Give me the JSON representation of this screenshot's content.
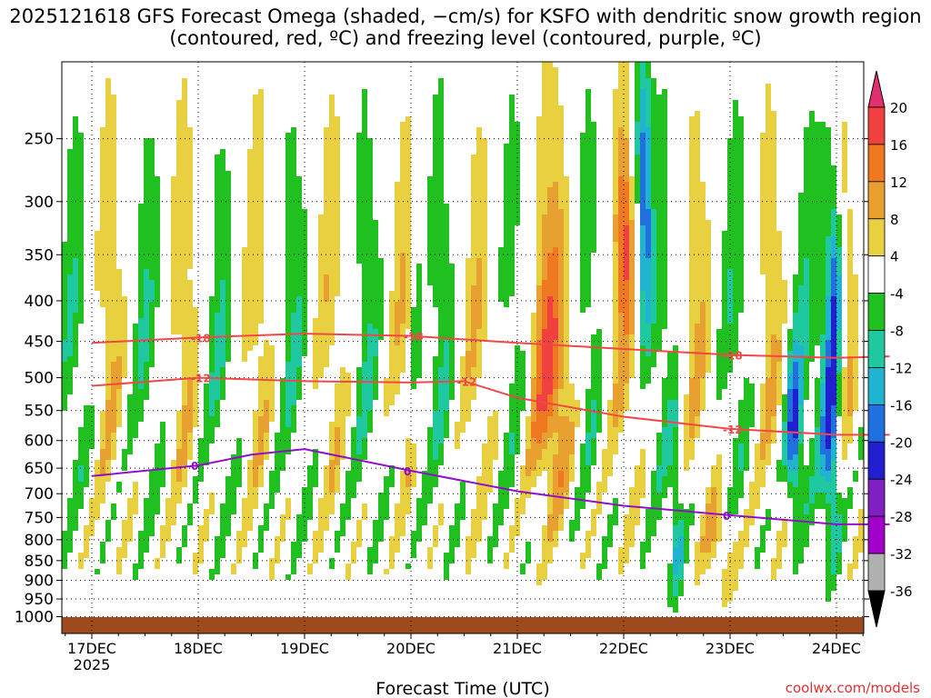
{
  "title": "2025121618 GFS Forecast Omega (shaded, −cm/s) for KSFO with dendritic snow growth region (contoured, red, ºC) and freezing level (contoured, purple, ºC)",
  "credit": "coolwx.com/models",
  "chart_data": {
    "type": "heatmap",
    "title": "2025121618 GFS Forecast Omega (shaded, −cm/s) for KSFO with dendritic snow growth region (contoured, red, ºC) and freezing level (contoured, purple, ºC)",
    "xlabel": "Forecast Time (UTC)",
    "ylabel": "",
    "x_ticks": [
      "17DEC",
      "18DEC",
      "19DEC",
      "20DEC",
      "21DEC",
      "22DEC",
      "23DEC",
      "24DEC"
    ],
    "x_sub_label": "2025",
    "y_ticks": [
      250,
      300,
      350,
      400,
      450,
      500,
      550,
      600,
      650,
      700,
      750,
      800,
      850,
      900,
      950,
      1000
    ],
    "y_reversed": true,
    "y_scale": "log",
    "grid": true,
    "colorbar": {
      "levels": [
        20,
        16,
        12,
        8,
        4,
        -4,
        -8,
        -12,
        -16,
        -20,
        -24,
        -28,
        -32,
        -36
      ],
      "colors": [
        "#e0306e",
        "#f04040",
        "#f07820",
        "#e8a030",
        "#e8d040",
        "#ffffff",
        "#20c020",
        "#20c8a0",
        "#20b4d0",
        "#2070e0",
        "#2020d0",
        "#8020c0",
        "#a000c8",
        "#b0b0b0",
        "#000000"
      ]
    },
    "contours": [
      {
        "color": "red",
        "label": "-18",
        "points": [
          [
            0,
            452
          ],
          [
            1,
            445
          ],
          [
            2,
            440
          ],
          [
            3,
            443
          ],
          [
            4,
            452
          ],
          [
            5,
            460
          ],
          [
            6,
            468
          ],
          [
            7,
            472
          ],
          [
            7.5,
            470
          ]
        ]
      },
      {
        "color": "red",
        "label": "-12",
        "points": [
          [
            0,
            512
          ],
          [
            1,
            500
          ],
          [
            2,
            505
          ],
          [
            3,
            507
          ],
          [
            3.5,
            505
          ],
          [
            4,
            530
          ],
          [
            5,
            560
          ],
          [
            6,
            580
          ],
          [
            7,
            590
          ],
          [
            7.5,
            590
          ]
        ]
      },
      {
        "color": "purple",
        "label": "0",
        "points": [
          [
            0,
            665
          ],
          [
            1,
            645
          ],
          [
            1.5,
            625
          ],
          [
            2,
            615
          ],
          [
            3,
            655
          ],
          [
            4,
            695
          ],
          [
            5,
            725
          ],
          [
            6,
            745
          ],
          [
            7,
            765
          ],
          [
            7.5,
            765
          ]
        ]
      }
    ]
  }
}
